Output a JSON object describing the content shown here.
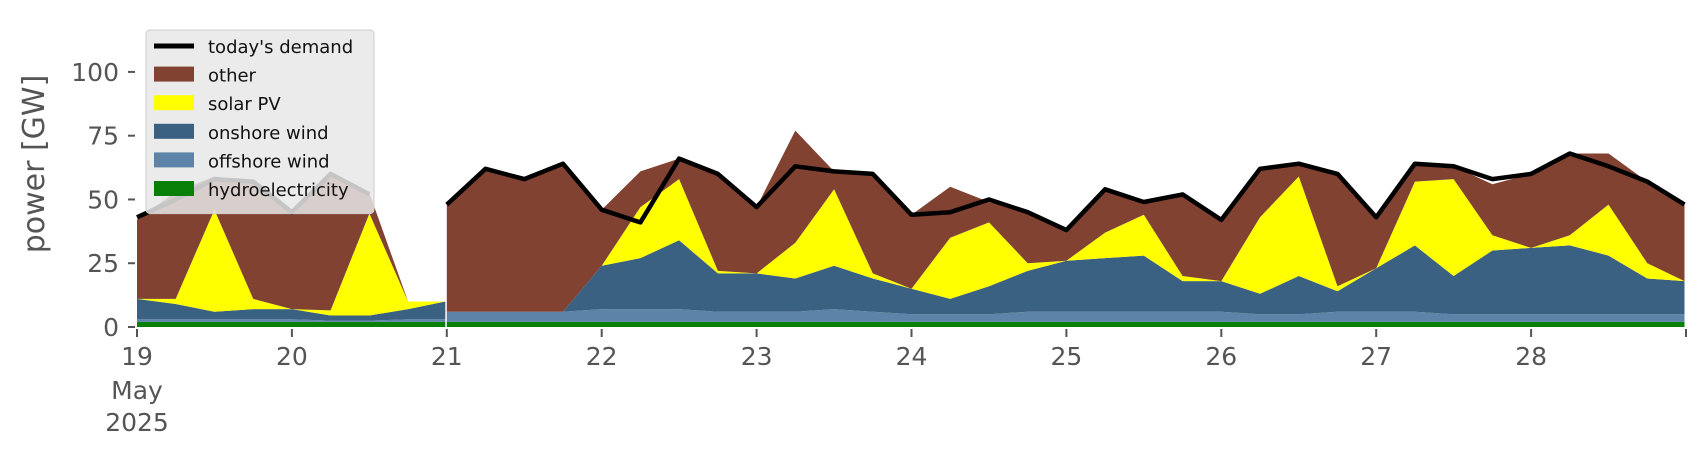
{
  "chart_data": {
    "type": "area",
    "title": "",
    "xlabel": "",
    "ylabel": "power [GW]",
    "xlim": [
      0,
      10
    ],
    "ylim": [
      0,
      118
    ],
    "grid": false,
    "legend_placement": "top-left",
    "x_ticks": [
      {
        "x": 0,
        "label": "19",
        "sub": [
          "May",
          "2025"
        ]
      },
      {
        "x": 1,
        "label": "20"
      },
      {
        "x": 2,
        "label": "21"
      },
      {
        "x": 3,
        "label": "22"
      },
      {
        "x": 4,
        "label": "23"
      },
      {
        "x": 5,
        "label": "24"
      },
      {
        "x": 6,
        "label": "25"
      },
      {
        "x": 7,
        "label": "26"
      },
      {
        "x": 8,
        "label": "27"
      },
      {
        "x": 9,
        "label": "28"
      }
    ],
    "y_ticks": [
      0,
      25,
      50,
      75,
      100
    ],
    "legend": [
      {
        "label": "today's demand",
        "kind": "line",
        "color": "#000000"
      },
      {
        "label": "other",
        "kind": "patch",
        "color": "#814232"
      },
      {
        "label": "solar PV",
        "kind": "patch",
        "color": "#ffff00"
      },
      {
        "label": "onshore wind",
        "kind": "patch",
        "color": "#3a6082"
      },
      {
        "label": "offshore wind",
        "kind": "patch",
        "color": "#5d84a8"
      },
      {
        "label": "hydroelectricity",
        "kind": "patch",
        "color": "#088008"
      }
    ],
    "segments": [
      {
        "x": [
          0,
          0.25,
          0.5,
          0.75,
          1.0,
          1.25,
          1.5,
          1.75,
          1.99
        ],
        "hydro": [
          2,
          2,
          2,
          2,
          2,
          2,
          2,
          2,
          2
        ],
        "offshore": [
          1,
          1,
          1,
          1,
          1,
          0.5,
          0.5,
          1,
          1
        ],
        "onshore": [
          8,
          6,
          3,
          4,
          4,
          2,
          2,
          4,
          7
        ],
        "solar": [
          0,
          2,
          40,
          4,
          0,
          2,
          40,
          3,
          0
        ],
        "other": [
          31,
          42,
          13,
          46,
          38,
          53,
          8,
          0,
          0
        ],
        "demand": [
          43,
          50,
          58,
          57,
          45,
          60,
          52,
          null,
          null
        ]
      },
      {
        "x": [
          2.0,
          2.25,
          2.5,
          2.75,
          3.0,
          3.25,
          3.5,
          3.75,
          4.0,
          4.25,
          4.5,
          4.75,
          5.0,
          5.25,
          5.5,
          5.75,
          6.0,
          6.25,
          6.5,
          6.75,
          7.0,
          7.25,
          7.5,
          7.75,
          8.0,
          8.25,
          8.5,
          8.75,
          9.0,
          9.25,
          9.5,
          9.75,
          9.99
        ],
        "hydro": [
          2,
          2,
          2,
          2,
          2,
          2,
          2,
          2,
          2,
          2,
          2,
          2,
          2,
          2,
          2,
          2,
          2,
          2,
          2,
          2,
          2,
          2,
          2,
          2,
          2,
          2,
          2,
          2,
          2,
          2,
          2,
          2,
          2
        ],
        "offshore": [
          4,
          4,
          4,
          4,
          5,
          5,
          5,
          4,
          4,
          4,
          5,
          4,
          3,
          3,
          3,
          4,
          4,
          4,
          4,
          4,
          4,
          3,
          3,
          4,
          4,
          4,
          3,
          3,
          3,
          3,
          3,
          3,
          3
        ],
        "onshore": [
          0,
          0,
          0,
          0,
          17,
          20,
          27,
          15,
          15,
          13,
          17,
          13,
          10,
          6,
          11,
          16,
          20,
          21,
          22,
          12,
          12,
          8,
          15,
          8,
          17,
          26,
          15,
          25,
          26,
          27,
          23,
          14,
          13
        ],
        "solar": [
          0,
          0,
          0,
          0,
          0,
          20,
          24,
          1,
          0,
          14,
          30,
          2,
          0,
          24,
          25,
          3,
          0,
          10,
          16,
          2,
          0,
          30,
          39,
          2,
          0,
          25,
          38,
          6,
          0,
          4,
          20,
          6,
          0
        ],
        "other": [
          42,
          56,
          52,
          58,
          22,
          14,
          8,
          38,
          26,
          44,
          7,
          39,
          29,
          20,
          8,
          20,
          12,
          17,
          5,
          32,
          24,
          19,
          5,
          44,
          20,
          7,
          5,
          20,
          29,
          32,
          20,
          32,
          30
        ],
        "demand": [
          48,
          62,
          58,
          64,
          46,
          41,
          66,
          60,
          47,
          63,
          61,
          60,
          44,
          45,
          50,
          45,
          38,
          54,
          49,
          52,
          42,
          62,
          64,
          60,
          43,
          64,
          63,
          58,
          60,
          68,
          63,
          57,
          48
        ]
      }
    ]
  }
}
